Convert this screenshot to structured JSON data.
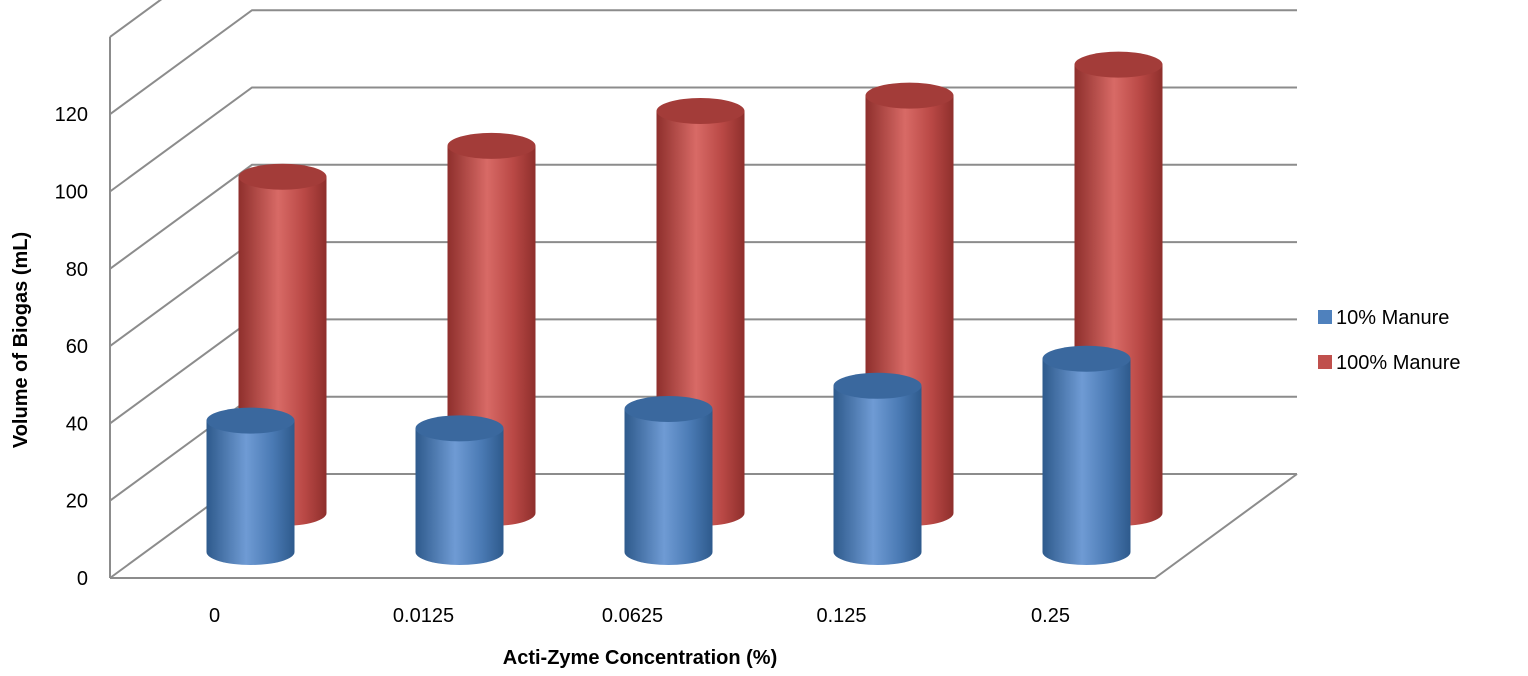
{
  "chart_data": {
    "type": "bar",
    "style": "3d-cylinder",
    "categories": [
      "0",
      "0.0125",
      "0.0625",
      "0.125",
      "0.25"
    ],
    "series": [
      {
        "name": "10% Manure",
        "values": [
          34,
          32,
          37,
          43,
          50
        ],
        "color": "#4f81bd"
      },
      {
        "name": "100% Manure",
        "values": [
          87,
          95,
          104,
          108,
          116
        ],
        "color": "#c0504d"
      }
    ],
    "xlabel": "Acti-Zyme Concentration (%)",
    "ylabel": "Volume of Biogas (mL)",
    "ylim": [
      0,
      140
    ],
    "yticks": [
      "0",
      "20",
      "40",
      "60",
      "80",
      "100",
      "120"
    ],
    "grid": true,
    "legend_position": "right"
  }
}
